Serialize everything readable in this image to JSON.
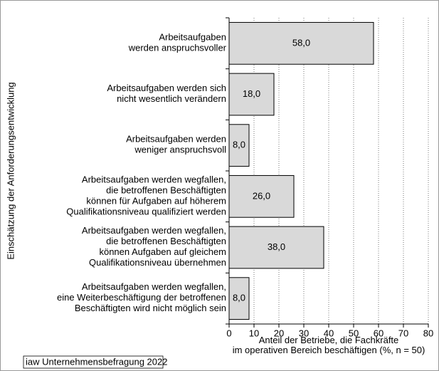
{
  "chart_data": {
    "type": "bar",
    "orientation": "horizontal",
    "categories": [
      [
        "Arbeitsaufgaben",
        "werden anspruchsvoller"
      ],
      [
        "Arbeitsaufgaben werden sich",
        "nicht wesentlich verändern"
      ],
      [
        "Arbeitsaufgaben werden",
        "weniger anspruchsvoll"
      ],
      [
        "Arbeitsaufgaben werden wegfallen,",
        "die betroffenen Beschäftigten",
        "können für Aufgaben auf höherem",
        "Qualifikationsniveau qualifiziert werden"
      ],
      [
        "Arbeitsaufgaben werden wegfallen,",
        "die betroffenen Beschäftigten",
        "können Aufgaben auf gleichem",
        "Qualifikationsniveau übernehmen"
      ],
      [
        "Arbeitsaufgaben werden wegfallen,",
        "eine Weiterbeschäftigung der betroffenen",
        "Beschäftigten wird nicht möglich sein"
      ]
    ],
    "values": [
      58,
      18,
      8,
      26,
      38,
      8
    ],
    "value_labels": [
      "58,0",
      "18,0",
      "8,0",
      "26,0",
      "38,0",
      "8,0"
    ],
    "color": "#d9d9d9",
    "xlim": [
      0,
      80
    ],
    "xticks": [
      0,
      10,
      20,
      30,
      40,
      50,
      60,
      70,
      80
    ],
    "grid": true,
    "x_label": [
      "Anteil der Betriebe, die Fachkräfte",
      "im operativen Bereich beschäftigen (%, n = 50)"
    ],
    "y_label": "Einschätzung der Anforderungsentwicklung",
    "source": "iaw Unternehmensbefragung 2022"
  }
}
